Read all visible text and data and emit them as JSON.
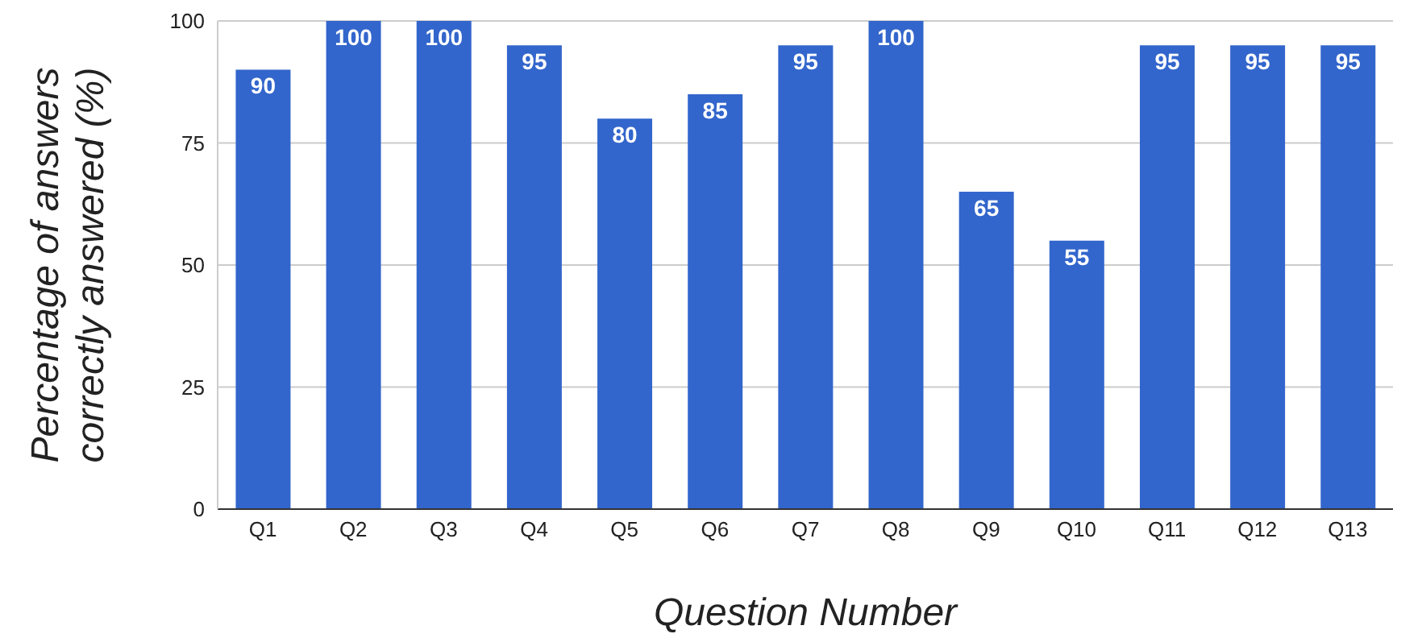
{
  "chart_data": {
    "type": "bar",
    "xlabel": "Question Number",
    "ylabel": "Percentage of answers correctly answered (%)",
    "categories": [
      "Q1",
      "Q2",
      "Q3",
      "Q4",
      "Q5",
      "Q6",
      "Q7",
      "Q8",
      "Q9",
      "Q10",
      "Q11",
      "Q12",
      "Q13"
    ],
    "values": [
      90,
      100,
      100,
      95,
      80,
      85,
      95,
      100,
      65,
      55,
      95,
      95,
      95
    ],
    "color": "#3366cc",
    "ylim": [
      0,
      100
    ],
    "yticks": [
      0,
      25,
      50,
      75,
      100
    ],
    "grid": "y",
    "data_labels": true,
    "legend": false
  }
}
